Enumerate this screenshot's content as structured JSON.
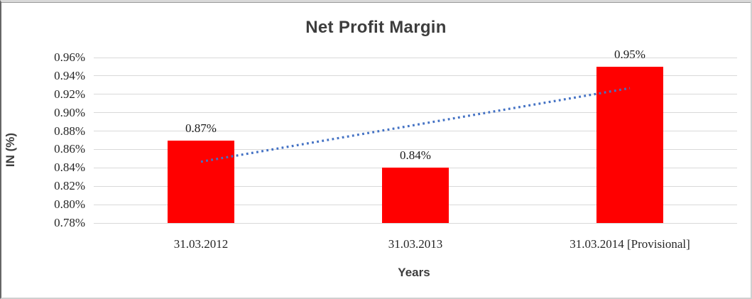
{
  "chart_data": {
    "type": "bar",
    "title": "Net Profit Margin",
    "xlabel": "Years",
    "ylabel": "IN (%)",
    "categories": [
      "31.03.2012",
      "31.03.2013",
      "31.03.2014 [Provisional]"
    ],
    "values": [
      0.87,
      0.84,
      0.95
    ],
    "data_labels": [
      "0.87%",
      "0.84%",
      "0.95%"
    ],
    "ylim": [
      0.78,
      0.96
    ],
    "ytick_step": 0.02,
    "yticks": [
      "0.96%",
      "0.94%",
      "0.92%",
      "0.90%",
      "0.88%",
      "0.86%",
      "0.84%",
      "0.82%",
      "0.80%",
      "0.78%"
    ],
    "grid": true,
    "legend": false,
    "bar_color": "#ff0000",
    "gridline_color": "#d9d9d9",
    "text_color": "#262626",
    "title_color": "#3d3d3d",
    "trendline": {
      "type": "linear",
      "style": "dotted",
      "color": "#4472c4",
      "start_value": 0.8467,
      "end_value": 0.9267
    }
  }
}
